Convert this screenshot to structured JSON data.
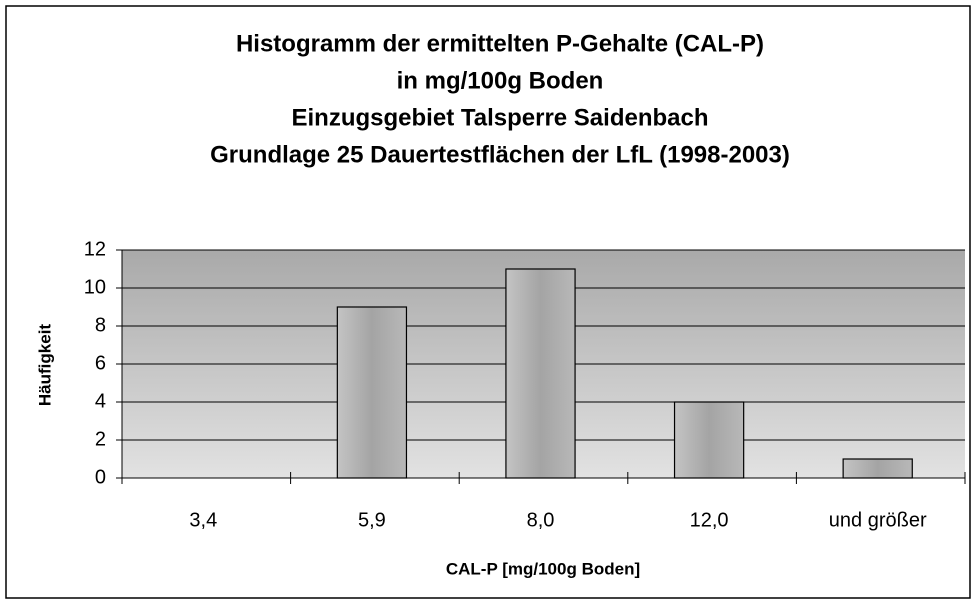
{
  "chart_data": {
    "type": "bar",
    "title": [
      "Histogramm der ermittelten P-Gehalte (CAL-P)",
      "in mg/100g Boden",
      "Einzugsgebiet Talsperre Saidenbach",
      "Grundlage 25 Dauertestflächen der LfL (1998-2003)"
    ],
    "x_label": "CAL-P [mg/100g Boden]",
    "y_label": "Häufigkeit",
    "categories": [
      "3,4",
      "5,9",
      "8,0",
      "12,0",
      "und größer"
    ],
    "values": [
      0,
      9,
      11,
      4,
      1
    ],
    "color": "#a8a8a8",
    "ylim": [
      0,
      12
    ],
    "yticks": [
      0,
      2,
      4,
      6,
      8,
      10,
      12
    ],
    "grid": true
  }
}
